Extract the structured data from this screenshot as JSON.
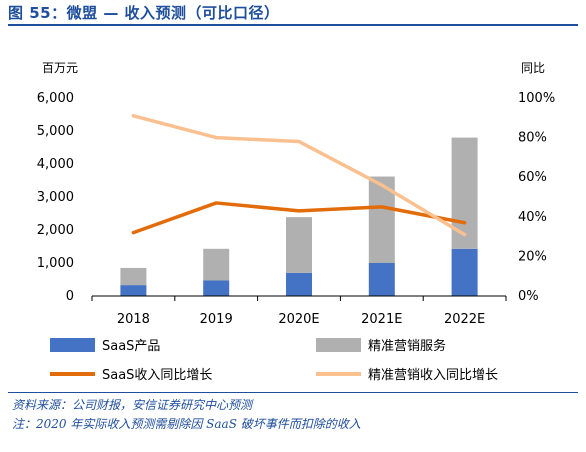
{
  "header": {
    "title": "图 55：微盟 — 收入预测（可比口径）"
  },
  "notes": {
    "source": "资料来源：公司财报，安信证券研究中心预测",
    "footnote": "注：2020 年实际收入预测需剔除因 SaaS 破坏事件而扣除的收入"
  },
  "chart_data": {
    "type": "bar",
    "stacked": true,
    "categories": [
      "2018",
      "2019",
      "2020E",
      "2021E",
      "2022E"
    ],
    "left_axis": {
      "label": "百万元",
      "ylim": [
        0,
        6000
      ],
      "ticks": [
        "0",
        "1,000",
        "2,000",
        "3,000",
        "4,000",
        "5,000",
        "6,000"
      ],
      "tick_values": [
        0,
        1000,
        2000,
        3000,
        4000,
        5000,
        6000
      ]
    },
    "right_axis": {
      "label": "同比",
      "ylim": [
        0,
        100
      ],
      "ticks": [
        "0%",
        "20%",
        "40%",
        "60%",
        "80%",
        "100%"
      ],
      "tick_values": [
        0,
        20,
        40,
        60,
        80,
        100
      ]
    },
    "series": [
      {
        "name": "SaaS产品",
        "kind": "bar",
        "axis": "left",
        "color": "#4472c4",
        "values": [
          330,
          470,
          700,
          1000,
          1430
        ]
      },
      {
        "name": "精准营销服务",
        "kind": "bar",
        "axis": "left",
        "color": "#b0b0b0",
        "values": [
          520,
          960,
          1690,
          2620,
          3370
        ]
      },
      {
        "name": "SaaS收入同比增长",
        "kind": "line",
        "axis": "right",
        "color": "#e36c0a",
        "values": [
          32,
          47,
          43,
          45,
          37
        ]
      },
      {
        "name": "精准营销收入同比增长",
        "kind": "line",
        "axis": "right",
        "color": "#fac090",
        "values": [
          91,
          80,
          78,
          56,
          31
        ]
      }
    ],
    "legend_position": "bottom",
    "grid": false
  }
}
